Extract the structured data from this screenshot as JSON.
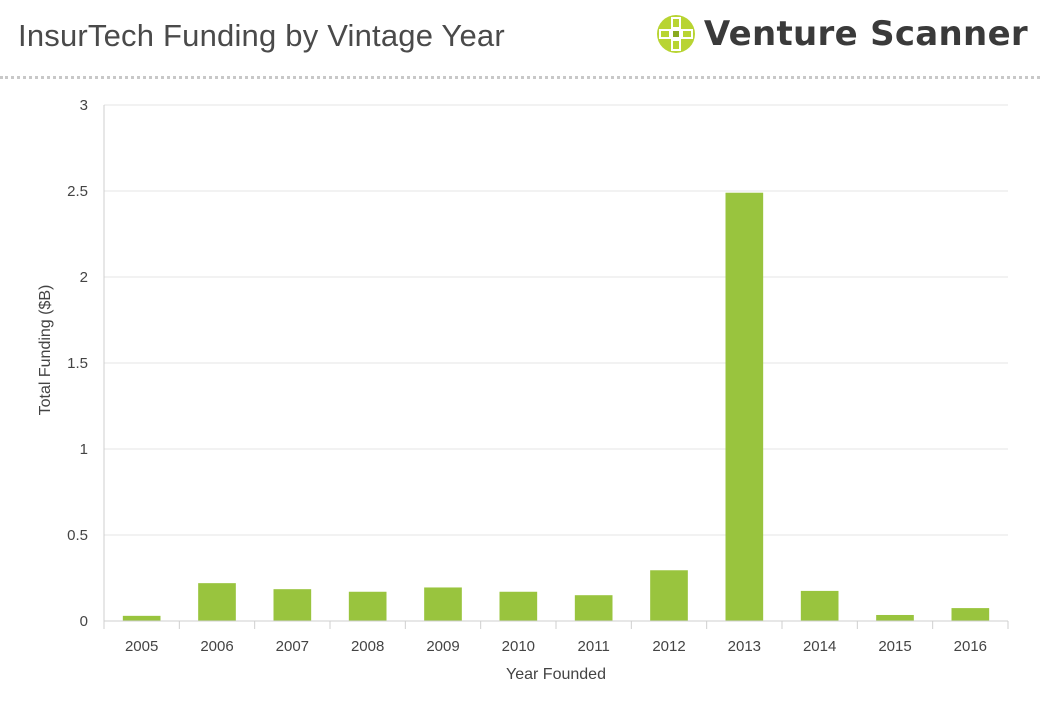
{
  "header": {
    "title": "InsurTech Funding by Vintage Year",
    "brand_name": "Venture Scanner",
    "brand_icon": "venture-scanner-logo-icon"
  },
  "colors": {
    "bar": "#99c43e",
    "grid": "#e4e4e4",
    "axis": "#cfcfcf",
    "text": "#444444",
    "brand_green": "#b8d432"
  },
  "chart_data": {
    "type": "bar",
    "title": "InsurTech Funding by Vintage Year",
    "xlabel": "Year Founded",
    "ylabel": "Total Funding ($B)",
    "ylim": [
      0,
      3
    ],
    "yticks": [
      0,
      0.5,
      1,
      1.5,
      2,
      2.5,
      3
    ],
    "grid": true,
    "legend": "none",
    "categories": [
      "2005",
      "2006",
      "2007",
      "2008",
      "2009",
      "2010",
      "2011",
      "2012",
      "2013",
      "2014",
      "2015",
      "2016"
    ],
    "series": [
      {
        "values": [
          0.03,
          0.22,
          0.185,
          0.17,
          0.195,
          0.17,
          0.15,
          0.295,
          2.49,
          0.175,
          0.035,
          0.075
        ]
      }
    ]
  }
}
